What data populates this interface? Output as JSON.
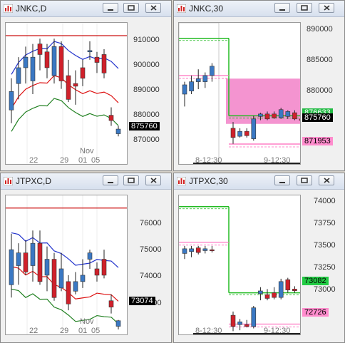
{
  "colors": {
    "up": "#3a78c3",
    "down": "#d0202a",
    "bb_upper": "#2233cc",
    "bb_mid": "#208020",
    "bb_lower": "#dd1111",
    "red_line": "#cc1111",
    "green_line": "#22bb22",
    "pink_line": "#ff66bb",
    "highlight": "#f070c0"
  },
  "panels": [
    {
      "title": "JNKC,D",
      "y_labels": [
        "910000",
        "900000",
        "890000",
        "880000",
        "870000"
      ],
      "x_labels": [
        "22",
        "29",
        "01",
        "05"
      ],
      "month_label": "Nov",
      "tags": [
        {
          "text": "875760",
          "kind": "black"
        }
      ]
    },
    {
      "title": "JNKC,30",
      "y_labels": [
        "890000",
        "885000",
        "880000"
      ],
      "x_labels": [
        "8-12:30",
        "9-12:30"
      ],
      "tags": [
        {
          "text": "876633",
          "kind": "green"
        },
        {
          "text": "875760",
          "kind": "black"
        },
        {
          "text": "871953",
          "kind": "pink"
        }
      ]
    },
    {
      "title": "JTPXC,D",
      "y_labels": [
        "76000",
        "75000",
        "74000",
        "73000"
      ],
      "x_labels": [
        "22",
        "29",
        "01",
        "05"
      ],
      "month_label": "Nov",
      "tags": [
        {
          "text": "73074",
          "kind": "black"
        }
      ]
    },
    {
      "title": "JTPXC,30",
      "y_labels": [
        "74000",
        "73750",
        "73500",
        "73250",
        "73000"
      ],
      "x_labels": [
        "8-12:30",
        "9-12:30"
      ],
      "tags": [
        {
          "text": "73082",
          "kind": "green"
        },
        {
          "text": "72726",
          "kind": "pink"
        }
      ]
    }
  ],
  "chart_data": [
    {
      "type": "candlestick",
      "title": "JNKC,D",
      "ylim": [
        862000,
        916000
      ],
      "candles": [
        {
          "o": 883000,
          "h": 895000,
          "l": 878000,
          "c": 890000
        },
        {
          "o": 893000,
          "h": 903000,
          "l": 887000,
          "c": 899000
        },
        {
          "o": 899000,
          "h": 907000,
          "l": 893000,
          "c": 903000
        },
        {
          "o": 894000,
          "h": 908000,
          "l": 889000,
          "c": 903000
        },
        {
          "o": 908000,
          "h": 910000,
          "l": 898000,
          "c": 904000
        },
        {
          "o": 905000,
          "h": 908000,
          "l": 895000,
          "c": 899000
        },
        {
          "o": 896000,
          "h": 910000,
          "l": 893000,
          "c": 907000
        },
        {
          "o": 907000,
          "h": 909000,
          "l": 891000,
          "c": 894000
        },
        {
          "o": 896000,
          "h": 902000,
          "l": 886000,
          "c": 887000
        },
        {
          "o": 893000,
          "h": 898000,
          "l": 885000,
          "c": 892000
        },
        {
          "o": 899000,
          "h": 902000,
          "l": 892000,
          "c": 895000
        },
        {
          "o": 905000,
          "h": 909000,
          "l": 902000,
          "c": 905500
        },
        {
          "o": 903000,
          "h": 905000,
          "l": 897000,
          "c": 901000
        },
        {
          "o": 904000,
          "h": 906000,
          "l": 895000,
          "c": 897000
        },
        {
          "o": 881000,
          "h": 884000,
          "l": 877000,
          "c": 879000
        },
        {
          "o": 874000,
          "h": 877000,
          "l": 873000,
          "c": 875760
        }
      ]
    },
    {
      "type": "candlestick",
      "title": "JNKC,30",
      "ylim": [
        868500,
        891500
      ],
      "candles": [
        {
          "o": 880000,
          "h": 882000,
          "l": 878000,
          "c": 881500
        },
        {
          "o": 880500,
          "h": 883000,
          "l": 880000,
          "c": 882000
        },
        {
          "o": 882000,
          "h": 884000,
          "l": 880800,
          "c": 882500
        },
        {
          "o": 882000,
          "h": 883500,
          "l": 881000,
          "c": 883000
        },
        {
          "o": 883000,
          "h": 885000,
          "l": 882000,
          "c": 884500
        },
        {
          "o": 874500,
          "h": 875500,
          "l": 872000,
          "c": 873000
        },
        {
          "o": 873200,
          "h": 874500,
          "l": 873000,
          "c": 874000
        },
        {
          "o": 874000,
          "h": 874500,
          "l": 873000,
          "c": 873300
        },
        {
          "o": 872800,
          "h": 876500,
          "l": 872500,
          "c": 876000
        },
        {
          "o": 876400,
          "h": 877000,
          "l": 875800,
          "c": 876800
        },
        {
          "o": 876800,
          "h": 877200,
          "l": 875800,
          "c": 876000
        },
        {
          "o": 876800,
          "h": 877200,
          "l": 876000,
          "c": 876200
        },
        {
          "o": 876200,
          "h": 877800,
          "l": 876000,
          "c": 877500
        },
        {
          "o": 876400,
          "h": 877400,
          "l": 876000,
          "c": 877200
        },
        {
          "o": 877000,
          "h": 877400,
          "l": 875800,
          "c": 876000
        },
        {
          "o": 876000,
          "h": 876500,
          "l": 875300,
          "c": 875760
        }
      ]
    },
    {
      "type": "candlestick",
      "title": "JTPXC,D",
      "ylim": [
        72600,
        77000
      ],
      "candles": [
        {
          "o": 74200,
          "h": 75800,
          "l": 73800,
          "c": 75300
        },
        {
          "o": 74800,
          "h": 75500,
          "l": 74200,
          "c": 75200
        },
        {
          "o": 75200,
          "h": 75600,
          "l": 74500,
          "c": 74600
        },
        {
          "o": 74800,
          "h": 75900,
          "l": 74300,
          "c": 75500
        },
        {
          "o": 75500,
          "h": 75900,
          "l": 74200,
          "c": 74300
        },
        {
          "o": 74500,
          "h": 75400,
          "l": 74000,
          "c": 75000
        },
        {
          "o": 75000,
          "h": 75200,
          "l": 73700,
          "c": 73800
        },
        {
          "o": 74100,
          "h": 75200,
          "l": 74000,
          "c": 74700
        },
        {
          "o": 74300,
          "h": 74500,
          "l": 73400,
          "c": 73600
        },
        {
          "o": 74000,
          "h": 74600,
          "l": 73900,
          "c": 74300
        },
        {
          "o": 74300,
          "h": 75000,
          "l": 74100,
          "c": 74500
        },
        {
          "o": 75000,
          "h": 75300,
          "l": 74700,
          "c": 75200
        },
        {
          "o": 74700,
          "h": 74900,
          "l": 74300,
          "c": 74500
        },
        {
          "o": 75000,
          "h": 75300,
          "l": 74400,
          "c": 74500
        },
        {
          "o": 73700,
          "h": 73900,
          "l": 73300,
          "c": 73500
        },
        {
          "o": 72900,
          "h": 73100,
          "l": 72800,
          "c": 73074
        }
      ]
    },
    {
      "type": "candlestick",
      "title": "JTPXC,30",
      "ylim": [
        72600,
        74100
      ],
      "candles": [
        {
          "o": 73480,
          "h": 73560,
          "l": 73420,
          "c": 73530
        },
        {
          "o": 73500,
          "h": 73560,
          "l": 73440,
          "c": 73530
        },
        {
          "o": 73540,
          "h": 73560,
          "l": 73470,
          "c": 73490
        },
        {
          "o": 73510,
          "h": 73560,
          "l": 73480,
          "c": 73530
        },
        {
          "o": 73520,
          "h": 73560,
          "l": 73490,
          "c": 73510
        },
        {
          "o": 72820,
          "h": 72860,
          "l": 72650,
          "c": 72700
        },
        {
          "o": 72720,
          "h": 72780,
          "l": 72660,
          "c": 72750
        },
        {
          "o": 72720,
          "h": 72770,
          "l": 72690,
          "c": 72700
        },
        {
          "o": 72700,
          "h": 72920,
          "l": 72680,
          "c": 72900
        },
        {
          "o": 73050,
          "h": 73120,
          "l": 72980,
          "c": 73080
        },
        {
          "o": 73040,
          "h": 73100,
          "l": 72980,
          "c": 73000
        },
        {
          "o": 73060,
          "h": 73120,
          "l": 72990,
          "c": 73010
        },
        {
          "o": 73010,
          "h": 73210,
          "l": 72990,
          "c": 73180
        },
        {
          "o": 73200,
          "h": 73220,
          "l": 73060,
          "c": 73090
        },
        {
          "o": 73100,
          "h": 73130,
          "l": 73060,
          "c": 73082
        }
      ]
    }
  ]
}
